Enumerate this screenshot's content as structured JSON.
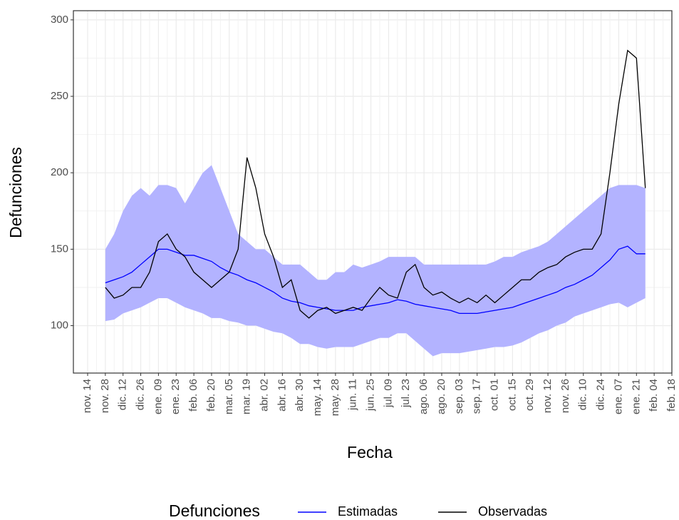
{
  "chart_data": {
    "type": "line",
    "x_label": "Fecha",
    "y_label": "Defunciones",
    "legend_title": "Defunciones",
    "legend_position": "bottom",
    "grid": true,
    "categories": [
      "nov. 14",
      null,
      "nov. 28",
      null,
      "dic. 12",
      null,
      "dic. 26",
      null,
      "ene. 09",
      null,
      "ene. 23",
      null,
      "feb. 06",
      null,
      "feb. 20",
      null,
      "mar. 05",
      null,
      "mar. 19",
      null,
      "abr. 02",
      null,
      "abr. 16",
      null,
      "abr. 30",
      null,
      "may. 14",
      null,
      "may. 28",
      null,
      "jun. 11",
      null,
      "jun. 25",
      null,
      "jul. 09",
      null,
      "jul. 23",
      null,
      "ago. 06",
      null,
      "ago. 20",
      null,
      "sep. 03",
      null,
      "sep. 17",
      null,
      "oct. 01",
      null,
      "oct. 15",
      null,
      "oct. 29",
      null,
      "nov. 12",
      null,
      "nov. 26",
      null,
      "dic. 10",
      null,
      "dic. 24",
      null,
      "ene. 07",
      null,
      "ene. 21",
      null,
      "feb. 04",
      null,
      "feb. 18"
    ],
    "ylim": [
      69,
      306
    ],
    "yticks": [
      100,
      150,
      200,
      250,
      300
    ],
    "band": {
      "color": "#b3b3ff",
      "lower": [
        null,
        null,
        103,
        104,
        108,
        110,
        112,
        115,
        118,
        118,
        115,
        112,
        110,
        108,
        105,
        105,
        103,
        102,
        100,
        100,
        98,
        96,
        95,
        92,
        88,
        88,
        86,
        85,
        86,
        86,
        86,
        88,
        90,
        92,
        92,
        95,
        95,
        90,
        85,
        80,
        82,
        82,
        82,
        83,
        84,
        85,
        86,
        86,
        87,
        89,
        92,
        95,
        97,
        100,
        102,
        106,
        108,
        110,
        112,
        114,
        115,
        112,
        115,
        118,
        null,
        null,
        null
      ],
      "upper": [
        null,
        null,
        150,
        160,
        175,
        185,
        190,
        185,
        192,
        192,
        190,
        180,
        190,
        200,
        205,
        190,
        175,
        160,
        155,
        150,
        150,
        145,
        140,
        140,
        140,
        135,
        130,
        130,
        135,
        135,
        140,
        138,
        140,
        142,
        145,
        145,
        145,
        145,
        140,
        140,
        140,
        140,
        140,
        140,
        140,
        140,
        142,
        145,
        145,
        148,
        150,
        152,
        155,
        160,
        165,
        170,
        175,
        180,
        185,
        190,
        192,
        192,
        192,
        190,
        null,
        null,
        null
      ]
    },
    "series": [
      {
        "name": "Estimadas",
        "color": "#0000ff",
        "values": [
          null,
          null,
          128,
          130,
          132,
          135,
          140,
          145,
          150,
          150,
          148,
          146,
          146,
          144,
          142,
          138,
          135,
          133,
          130,
          128,
          125,
          122,
          118,
          116,
          115,
          113,
          112,
          111,
          110,
          110,
          110,
          112,
          113,
          114,
          115,
          117,
          116,
          114,
          113,
          112,
          111,
          110,
          108,
          108,
          108,
          109,
          110,
          111,
          112,
          114,
          116,
          118,
          120,
          122,
          125,
          127,
          130,
          133,
          138,
          143,
          150,
          152,
          147,
          147,
          null,
          null,
          null
        ]
      },
      {
        "name": "Observadas",
        "color": "#000000",
        "values": [
          null,
          null,
          125,
          118,
          120,
          125,
          125,
          135,
          155,
          160,
          150,
          145,
          135,
          130,
          125,
          130,
          135,
          150,
          210,
          190,
          160,
          145,
          125,
          130,
          110,
          105,
          110,
          112,
          108,
          110,
          112,
          110,
          118,
          125,
          120,
          118,
          135,
          140,
          125,
          120,
          122,
          118,
          115,
          118,
          115,
          120,
          115,
          120,
          125,
          130,
          130,
          135,
          138,
          140,
          145,
          148,
          150,
          150,
          160,
          200,
          245,
          280,
          275,
          190,
          null,
          null,
          null
        ]
      }
    ]
  }
}
